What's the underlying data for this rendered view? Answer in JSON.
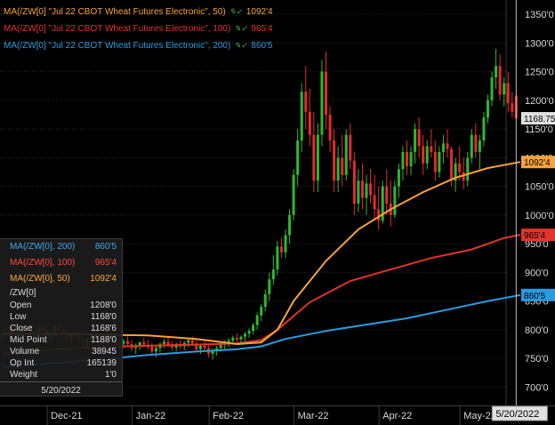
{
  "legend": [
    {
      "label": "MA(/ZW[0] \"Jul 22 CBOT Wheat Futures Electronic\", 50)",
      "value": "1092'4",
      "color": "#f7a23a"
    },
    {
      "label": "MA(/ZW[0] \"Jul 22 CBOT Wheat Futures Electronic\", 100)",
      "value": "965'4",
      "color": "#e2342b"
    },
    {
      "label": "MA(/ZW[0] \"Jul 22 CBOT Wheat Futures Electronic\", 200)",
      "value": "860'5",
      "color": "#2a9be0"
    }
  ],
  "data_window": {
    "ma_rows": [
      {
        "label": "MA(/ZW[0], 200)",
        "value": "860'5",
        "color": "#3fa8ee"
      },
      {
        "label": "MA(/ZW[0], 100)",
        "value": "965'4",
        "color": "#ff4a3d"
      },
      {
        "label": "MA(/ZW[0], 50)",
        "value": "1092'4",
        "color": "#ffa63c"
      }
    ],
    "symbol": "/ZW[0]",
    "fields": [
      {
        "label": "Open",
        "value": "1208'0"
      },
      {
        "label": "Low",
        "value": "1168'0"
      },
      {
        "label": "Close",
        "value": "1168'6"
      },
      {
        "label": "Mid Point",
        "value": "1188'0"
      },
      {
        "label": "Volume",
        "value": "38945"
      },
      {
        "label": "Op Int",
        "value": "165139"
      },
      {
        "label": "Weight",
        "value": "1'0"
      }
    ],
    "date": "5/20/2022"
  },
  "chart_data": {
    "type": "candlestick",
    "y_ticks": [
      "1350'0",
      "1300'0",
      "1250'0",
      "1200'0",
      "1150'0",
      "1100'0",
      "1050'0",
      "1000'0",
      "950'0",
      "900'0",
      "850'0",
      "800'0",
      "750'0",
      "700'0"
    ],
    "y_tick_values": [
      1350,
      1300,
      1250,
      1200,
      1150,
      1100,
      1050,
      1000,
      950,
      900,
      850,
      800,
      750,
      700
    ],
    "ylim": [
      668,
      1375
    ],
    "x_labels": [
      "Dec-21",
      "Jan-22",
      "Feb-22",
      "Mar-22",
      "Apr-22",
      "May-22"
    ],
    "x_label_index": [
      12,
      33,
      52,
      73,
      94,
      114
    ],
    "crosshair_index": 127,
    "crosshair_label": "5/20/2022",
    "last_price": 1168.75,
    "last_price_label": "1168.75",
    "ma_tags": [
      {
        "label": "1092'4",
        "value": 1092.5,
        "color": "#f7a23a"
      },
      {
        "label": "965'4",
        "value": 965.5,
        "color": "#e2342b"
      },
      {
        "label": "860'5",
        "value": 860.6,
        "color": "#2a9be0"
      }
    ],
    "candles": [
      [
        790,
        800,
        780,
        795
      ],
      [
        795,
        805,
        788,
        792
      ],
      [
        792,
        810,
        785,
        805
      ],
      [
        805,
        812,
        795,
        800
      ],
      [
        800,
        808,
        790,
        797
      ],
      [
        797,
        805,
        788,
        802
      ],
      [
        802,
        810,
        795,
        798
      ],
      [
        798,
        804,
        785,
        790
      ],
      [
        790,
        799,
        780,
        796
      ],
      [
        796,
        806,
        790,
        803
      ],
      [
        803,
        810,
        795,
        799
      ],
      [
        799,
        805,
        788,
        792
      ],
      [
        792,
        800,
        782,
        797
      ],
      [
        797,
        808,
        790,
        804
      ],
      [
        804,
        812,
        796,
        800
      ],
      [
        800,
        806,
        790,
        795
      ],
      [
        795,
        800,
        780,
        785
      ],
      [
        785,
        795,
        775,
        792
      ],
      [
        792,
        800,
        782,
        788
      ],
      [
        788,
        796,
        778,
        783
      ],
      [
        783,
        790,
        770,
        778
      ],
      [
        778,
        788,
        768,
        785
      ],
      [
        785,
        795,
        778,
        791
      ],
      [
        791,
        799,
        782,
        786
      ],
      [
        786,
        792,
        772,
        776
      ],
      [
        776,
        785,
        768,
        781
      ],
      [
        781,
        790,
        774,
        787
      ],
      [
        787,
        795,
        778,
        782
      ],
      [
        782,
        788,
        765,
        770
      ],
      [
        770,
        780,
        762,
        776
      ],
      [
        776,
        784,
        768,
        780
      ],
      [
        780,
        788,
        772,
        775
      ],
      [
        775,
        782,
        762,
        768
      ],
      [
        768,
        776,
        758,
        772
      ],
      [
        772,
        780,
        765,
        778
      ],
      [
        778,
        786,
        770,
        774
      ],
      [
        774,
        782,
        765,
        770
      ],
      [
        770,
        776,
        756,
        762
      ],
      [
        762,
        772,
        752,
        768
      ],
      [
        768,
        778,
        760,
        775
      ],
      [
        775,
        784,
        768,
        779
      ],
      [
        779,
        786,
        770,
        773
      ],
      [
        773,
        780,
        764,
        769
      ],
      [
        769,
        778,
        762,
        775
      ],
      [
        775,
        782,
        766,
        771
      ],
      [
        771,
        780,
        764,
        777
      ],
      [
        777,
        786,
        770,
        782
      ],
      [
        782,
        788,
        772,
        776
      ],
      [
        776,
        782,
        762,
        766
      ],
      [
        766,
        776,
        758,
        772
      ],
      [
        772,
        780,
        764,
        768
      ],
      [
        768,
        774,
        752,
        758
      ],
      [
        758,
        768,
        748,
        764
      ],
      [
        764,
        772,
        755,
        768
      ],
      [
        768,
        778,
        762,
        774
      ],
      [
        774,
        782,
        766,
        778
      ],
      [
        778,
        786,
        770,
        781
      ],
      [
        781,
        790,
        774,
        786
      ],
      [
        786,
        794,
        778,
        783
      ],
      [
        783,
        790,
        774,
        788
      ],
      [
        788,
        796,
        780,
        793
      ],
      [
        793,
        802,
        786,
        798
      ],
      [
        798,
        812,
        792,
        808
      ],
      [
        808,
        830,
        800,
        825
      ],
      [
        825,
        845,
        815,
        840
      ],
      [
        840,
        870,
        832,
        862
      ],
      [
        862,
        900,
        850,
        888
      ],
      [
        888,
        930,
        878,
        905
      ],
      [
        905,
        955,
        895,
        945
      ],
      [
        945,
        960,
        925,
        935
      ],
      [
        935,
        975,
        925,
        965
      ],
      [
        965,
        1010,
        950,
        1000
      ],
      [
        1000,
        1080,
        990,
        1070
      ],
      [
        1070,
        1150,
        1050,
        1130
      ],
      [
        1130,
        1230,
        1110,
        1215
      ],
      [
        1215,
        1260,
        1150,
        1180
      ],
      [
        1180,
        1220,
        1120,
        1140
      ],
      [
        1140,
        1180,
        1040,
        1060
      ],
      [
        1060,
        1160,
        1040,
        1140
      ],
      [
        1140,
        1270,
        1120,
        1250
      ],
      [
        1250,
        1285,
        1150,
        1175
      ],
      [
        1175,
        1190,
        1110,
        1130
      ],
      [
        1130,
        1150,
        1040,
        1060
      ],
      [
        1060,
        1120,
        1040,
        1100
      ],
      [
        1100,
        1140,
        1050,
        1070
      ],
      [
        1070,
        1150,
        1060,
        1140
      ],
      [
        1140,
        1160,
        1080,
        1095
      ],
      [
        1095,
        1110,
        1000,
        1020
      ],
      [
        1020,
        1080,
        1005,
        1060
      ],
      [
        1060,
        1090,
        1010,
        1030
      ],
      [
        1030,
        1070,
        1000,
        1055
      ],
      [
        1055,
        1080,
        1020,
        1035
      ],
      [
        1035,
        1070,
        990,
        1010
      ],
      [
        1010,
        1050,
        975,
        990
      ],
      [
        990,
        1060,
        985,
        1050
      ],
      [
        1050,
        1080,
        1000,
        1020
      ],
      [
        1020,
        1060,
        980,
        1000
      ],
      [
        1000,
        1060,
        995,
        1050
      ],
      [
        1050,
        1090,
        1030,
        1080
      ],
      [
        1080,
        1120,
        1060,
        1110
      ],
      [
        1110,
        1130,
        1070,
        1085
      ],
      [
        1085,
        1120,
        1070,
        1110
      ],
      [
        1110,
        1160,
        1090,
        1150
      ],
      [
        1150,
        1170,
        1100,
        1120
      ],
      [
        1120,
        1140,
        1070,
        1090
      ],
      [
        1090,
        1130,
        1080,
        1120
      ],
      [
        1120,
        1150,
        1100,
        1110
      ],
      [
        1110,
        1130,
        1060,
        1075
      ],
      [
        1075,
        1120,
        1065,
        1110
      ],
      [
        1110,
        1140,
        1090,
        1125
      ],
      [
        1125,
        1150,
        1100,
        1115
      ],
      [
        1115,
        1120,
        1050,
        1060
      ],
      [
        1060,
        1100,
        1040,
        1090
      ],
      [
        1090,
        1120,
        1060,
        1075
      ],
      [
        1075,
        1100,
        1045,
        1060
      ],
      [
        1060,
        1110,
        1050,
        1100
      ],
      [
        1100,
        1150,
        1090,
        1140
      ],
      [
        1140,
        1160,
        1100,
        1110
      ],
      [
        1110,
        1140,
        1080,
        1130
      ],
      [
        1130,
        1180,
        1120,
        1170
      ],
      [
        1170,
        1210,
        1160,
        1200
      ],
      [
        1200,
        1250,
        1190,
        1240
      ],
      [
        1240,
        1290,
        1220,
        1260
      ],
      [
        1260,
        1280,
        1200,
        1210
      ],
      [
        1210,
        1240,
        1190,
        1230
      ],
      [
        1230,
        1250,
        1180,
        1195
      ],
      [
        1195,
        1215,
        1170,
        1180
      ],
      [
        1208,
        1208,
        1168,
        1168.75
      ]
    ],
    "ma50": [
      [
        0,
        793
      ],
      [
        20,
        792
      ],
      [
        36,
        790
      ],
      [
        48,
        784
      ],
      [
        58,
        775
      ],
      [
        64,
        778
      ],
      [
        68,
        800
      ],
      [
        72,
        850
      ],
      [
        80,
        920
      ],
      [
        88,
        975
      ],
      [
        96,
        1010
      ],
      [
        104,
        1040
      ],
      [
        112,
        1065
      ],
      [
        120,
        1082
      ],
      [
        128,
        1092.5
      ]
    ],
    "ma100": [
      [
        0,
        757
      ],
      [
        12,
        765
      ],
      [
        24,
        770
      ],
      [
        36,
        772
      ],
      [
        48,
        774
      ],
      [
        58,
        776
      ],
      [
        64,
        782
      ],
      [
        68,
        800
      ],
      [
        76,
        848
      ],
      [
        86,
        885
      ],
      [
        96,
        905
      ],
      [
        106,
        925
      ],
      [
        116,
        940
      ],
      [
        124,
        960
      ],
      [
        128,
        965.5
      ]
    ],
    "ma200": [
      [
        0,
        735
      ],
      [
        12,
        741
      ],
      [
        24,
        748
      ],
      [
        36,
        756
      ],
      [
        48,
        762
      ],
      [
        58,
        766
      ],
      [
        64,
        771
      ],
      [
        70,
        784
      ],
      [
        80,
        798
      ],
      [
        90,
        809
      ],
      [
        100,
        820
      ],
      [
        110,
        835
      ],
      [
        120,
        850
      ],
      [
        128,
        860.6
      ]
    ]
  }
}
